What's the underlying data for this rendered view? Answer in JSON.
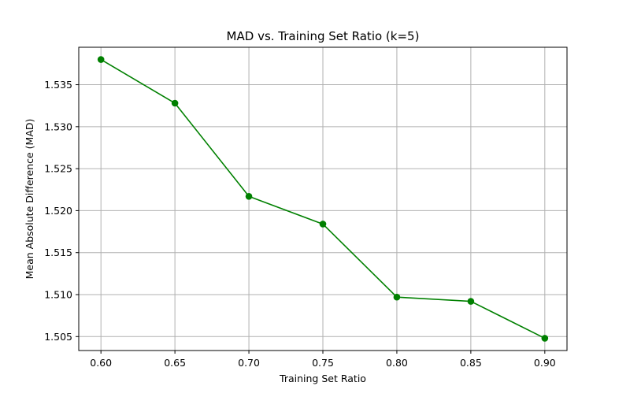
{
  "chart_data": {
    "type": "line",
    "title": "MAD vs. Training Set Ratio (k=5)",
    "xlabel": "Training Set Ratio",
    "ylabel": "Mean Absolute Difference (MAD)",
    "x": [
      0.6,
      0.65,
      0.7,
      0.75,
      0.8,
      0.85,
      0.9
    ],
    "series": [
      {
        "values": [
          1.538,
          1.5328,
          1.5217,
          1.5184,
          1.5097,
          1.5092,
          1.5048
        ],
        "color": "#008000",
        "marker": "circle"
      }
    ],
    "xticks": [
      "0.60",
      "0.65",
      "0.70",
      "0.75",
      "0.80",
      "0.85",
      "0.90"
    ],
    "xtick_values": [
      0.6,
      0.65,
      0.7,
      0.75,
      0.8,
      0.85,
      0.9
    ],
    "yticks": [
      "1.505",
      "1.510",
      "1.515",
      "1.520",
      "1.525",
      "1.530",
      "1.535"
    ],
    "ytick_values": [
      1.505,
      1.51,
      1.515,
      1.52,
      1.525,
      1.53,
      1.535
    ],
    "xlim": [
      0.585,
      0.915
    ],
    "ylim": [
      1.50334,
      1.53946
    ],
    "grid": true,
    "grid_color": "#b0b0b0"
  }
}
